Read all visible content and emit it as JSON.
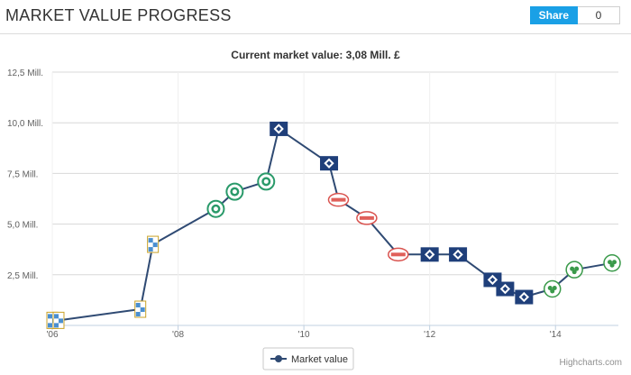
{
  "header": {
    "title": "MARKET VALUE PROGRESS"
  },
  "share": {
    "label": "Share",
    "count": "0"
  },
  "chart_data": {
    "type": "line",
    "subtitle": "Current market value: 3,08 Mill. £",
    "y_ticks": [
      "12,5 Mill.",
      "10,0 Mill.",
      "7,5 Mill.",
      "5,0 Mill.",
      "2,5 Mill."
    ],
    "x_ticks": [
      "'06",
      "'08",
      "'10",
      "'12",
      "'14"
    ],
    "xlim": [
      2006,
      2015
    ],
    "ylim": [
      0,
      12.5
    ],
    "grid": true,
    "legend_position": "bottom-center",
    "series": [
      {
        "name": "Market value",
        "color": "#2f4a73",
        "points": [
          {
            "x": 2006.0,
            "y": 0.25,
            "badge": "crest-blue"
          },
          {
            "x": 2006.1,
            "y": 0.25,
            "badge": "crest-blue"
          },
          {
            "x": 2007.4,
            "y": 0.8,
            "badge": "crest-blue"
          },
          {
            "x": 2007.6,
            "y": 4.0,
            "badge": "crest-blue"
          },
          {
            "x": 2008.6,
            "y": 5.75,
            "badge": "crest-green"
          },
          {
            "x": 2008.9,
            "y": 6.6,
            "badge": "crest-green"
          },
          {
            "x": 2009.4,
            "y": 7.1,
            "badge": "crest-green"
          },
          {
            "x": 2009.6,
            "y": 9.7,
            "badge": "crest-navy"
          },
          {
            "x": 2010.4,
            "y": 8.0,
            "badge": "crest-navy"
          },
          {
            "x": 2010.55,
            "y": 6.2,
            "badge": "crest-red"
          },
          {
            "x": 2011.0,
            "y": 5.3,
            "badge": "crest-red"
          },
          {
            "x": 2011.5,
            "y": 3.5,
            "badge": "crest-red"
          },
          {
            "x": 2012.0,
            "y": 3.5,
            "badge": "crest-navy"
          },
          {
            "x": 2012.45,
            "y": 3.5,
            "badge": "crest-navy"
          },
          {
            "x": 2013.0,
            "y": 2.25,
            "badge": "crest-navy"
          },
          {
            "x": 2013.2,
            "y": 1.8,
            "badge": "crest-navy"
          },
          {
            "x": 2013.5,
            "y": 1.4,
            "badge": "crest-navy"
          },
          {
            "x": 2013.95,
            "y": 1.8,
            "badge": "crest-clover"
          },
          {
            "x": 2014.3,
            "y": 2.75,
            "badge": "crest-clover"
          },
          {
            "x": 2014.9,
            "y": 3.08,
            "badge": "crest-clover"
          }
        ]
      }
    ]
  },
  "credit": "Highcharts.com"
}
